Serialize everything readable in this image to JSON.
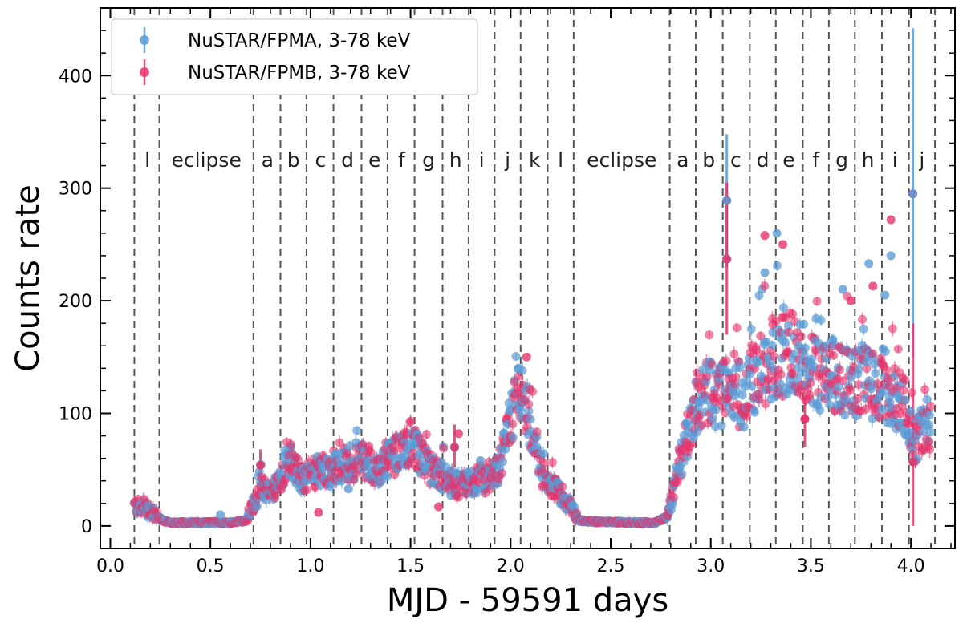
{
  "chart_data": {
    "type": "scatter",
    "title": "",
    "xlabel": "MJD - 59591 days",
    "ylabel": "Counts rate",
    "xlim": [
      -0.05,
      4.22
    ],
    "ylim": [
      -20,
      460
    ],
    "x_ticks": [
      0.0,
      0.5,
      1.0,
      1.5,
      2.0,
      2.5,
      3.0,
      3.5,
      4.0
    ],
    "x_tick_labels": [
      "0.0",
      "0.5",
      "1.0",
      "1.5",
      "2.0",
      "2.5",
      "3.0",
      "3.5",
      "4.0"
    ],
    "y_ticks": [
      0,
      100,
      200,
      300,
      400
    ],
    "y_tick_labels": [
      "0",
      "100",
      "200",
      "300",
      "400"
    ],
    "legend_position": "top-left",
    "grid": false,
    "series": [
      {
        "name": "NuSTAR/FPMA, 3-78 keV",
        "color": "#5b9bd5",
        "marker": "circle"
      },
      {
        "name": "NuSTAR/FPMB, 3-78 keV",
        "color": "#e5336a",
        "marker": "circle"
      }
    ],
    "phase_boundaries": [
      0.12,
      0.245,
      0.715,
      0.85,
      0.98,
      1.115,
      1.255,
      1.385,
      1.52,
      1.66,
      1.79,
      1.92,
      2.05,
      2.185,
      2.315,
      2.795,
      2.925,
      3.06,
      3.195,
      3.325,
      3.46,
      3.59,
      3.72,
      3.855,
      3.99,
      4.12
    ],
    "phases": [
      {
        "label": "l",
        "x": 0.185
      },
      {
        "label": "eclipse",
        "x": 0.48
      },
      {
        "label": "a",
        "x": 0.785
      },
      {
        "label": "b",
        "x": 0.915
      },
      {
        "label": "c",
        "x": 1.05
      },
      {
        "label": "d",
        "x": 1.185
      },
      {
        "label": "e",
        "x": 1.32
      },
      {
        "label": "f",
        "x": 1.455
      },
      {
        "label": "g",
        "x": 1.59
      },
      {
        "label": "h",
        "x": 1.725
      },
      {
        "label": "i",
        "x": 1.855
      },
      {
        "label": "j",
        "x": 1.985
      },
      {
        "label": "k",
        "x": 2.12
      },
      {
        "label": "l",
        "x": 2.25
      },
      {
        "label": "eclipse",
        "x": 2.555
      },
      {
        "label": "a",
        "x": 2.86
      },
      {
        "label": "b",
        "x": 2.99
      },
      {
        "label": "c",
        "x": 3.125
      },
      {
        "label": "d",
        "x": 3.26
      },
      {
        "label": "e",
        "x": 3.39
      },
      {
        "label": "f",
        "x": 3.525
      },
      {
        "label": "g",
        "x": 3.655
      },
      {
        "label": "h",
        "x": 3.785
      },
      {
        "label": "i",
        "x": 3.92
      },
      {
        "label": "j",
        "x": 4.055
      }
    ],
    "lightcurve_profile": [
      [
        0.12,
        18
      ],
      [
        0.17,
        16
      ],
      [
        0.22,
        10
      ],
      [
        0.26,
        5
      ],
      [
        0.3,
        3
      ],
      [
        0.5,
        3
      ],
      [
        0.6,
        3
      ],
      [
        0.68,
        5
      ],
      [
        0.7,
        14
      ],
      [
        0.73,
        25
      ],
      [
        0.76,
        36
      ],
      [
        0.8,
        30
      ],
      [
        0.85,
        38
      ],
      [
        0.88,
        60
      ],
      [
        0.92,
        55
      ],
      [
        0.96,
        40
      ],
      [
        1.0,
        45
      ],
      [
        1.05,
        50
      ],
      [
        1.1,
        45
      ],
      [
        1.15,
        55
      ],
      [
        1.2,
        50
      ],
      [
        1.25,
        60
      ],
      [
        1.3,
        55
      ],
      [
        1.35,
        50
      ],
      [
        1.4,
        60
      ],
      [
        1.45,
        65
      ],
      [
        1.5,
        75
      ],
      [
        1.55,
        60
      ],
      [
        1.6,
        50
      ],
      [
        1.65,
        45
      ],
      [
        1.7,
        38
      ],
      [
        1.75,
        35
      ],
      [
        1.8,
        38
      ],
      [
        1.85,
        42
      ],
      [
        1.9,
        40
      ],
      [
        1.95,
        55
      ],
      [
        1.98,
        80
      ],
      [
        2.02,
        110
      ],
      [
        2.06,
        115
      ],
      [
        2.09,
        95
      ],
      [
        2.12,
        65
      ],
      [
        2.16,
        45
      ],
      [
        2.2,
        35
      ],
      [
        2.24,
        30
      ],
      [
        2.28,
        22
      ],
      [
        2.31,
        15
      ],
      [
        2.34,
        5
      ],
      [
        2.4,
        4
      ],
      [
        2.6,
        3
      ],
      [
        2.72,
        3
      ],
      [
        2.78,
        8
      ],
      [
        2.8,
        20
      ],
      [
        2.83,
        45
      ],
      [
        2.86,
        65
      ],
      [
        2.9,
        90
      ],
      [
        2.93,
        110
      ],
      [
        2.98,
        120
      ],
      [
        3.03,
        115
      ],
      [
        3.08,
        120
      ],
      [
        3.12,
        125
      ],
      [
        3.16,
        110
      ],
      [
        3.2,
        125
      ],
      [
        3.25,
        140
      ],
      [
        3.3,
        145
      ],
      [
        3.35,
        150
      ],
      [
        3.4,
        155
      ],
      [
        3.45,
        150
      ],
      [
        3.5,
        140
      ],
      [
        3.55,
        130
      ],
      [
        3.6,
        135
      ],
      [
        3.65,
        130
      ],
      [
        3.7,
        125
      ],
      [
        3.75,
        130
      ],
      [
        3.8,
        125
      ],
      [
        3.85,
        120
      ],
      [
        3.9,
        115
      ],
      [
        3.95,
        110
      ],
      [
        3.98,
        105
      ],
      [
        4.0,
        80
      ],
      [
        4.02,
        75
      ],
      [
        4.05,
        85
      ],
      [
        4.08,
        90
      ],
      [
        4.1,
        88
      ]
    ],
    "notable_points": [
      [
        0.55,
        10
      ],
      [
        1.04,
        12
      ],
      [
        1.19,
        33
      ],
      [
        1.64,
        17
      ],
      [
        1.72,
        70
      ],
      [
        1.74,
        82
      ],
      [
        1.85,
        58
      ],
      [
        2.08,
        150
      ],
      [
        2.04,
        140
      ],
      [
        3.08,
        289
      ],
      [
        3.08,
        237
      ],
      [
        3.27,
        258
      ],
      [
        3.33,
        260
      ],
      [
        3.36,
        250
      ],
      [
        3.27,
        225
      ],
      [
        3.47,
        95
      ],
      [
        3.66,
        210
      ],
      [
        3.7,
        200
      ],
      [
        3.79,
        233
      ],
      [
        3.81,
        213
      ],
      [
        3.87,
        205
      ],
      [
        3.9,
        272
      ],
      [
        3.9,
        240
      ],
      [
        4.01,
        295
      ],
      [
        4.01,
        57
      ]
    ],
    "large_errorbars": [
      {
        "x": 3.08,
        "y": 289,
        "low": 230,
        "high": 348,
        "series": 0
      },
      {
        "x": 3.08,
        "y": 237,
        "low": 170,
        "high": 305,
        "series": 1
      },
      {
        "x": 4.01,
        "y": 295,
        "low": 150,
        "high": 442,
        "series": 0
      },
      {
        "x": 4.01,
        "y": 57,
        "low": 0,
        "high": 180,
        "series": 1
      },
      {
        "x": 0.75,
        "y": 54,
        "low": 40,
        "high": 68,
        "series": 1
      },
      {
        "x": 1.72,
        "y": 70,
        "low": 52,
        "high": 90,
        "series": 1
      },
      {
        "x": 3.47,
        "y": 95,
        "low": 70,
        "high": 115,
        "series": 1
      }
    ]
  }
}
